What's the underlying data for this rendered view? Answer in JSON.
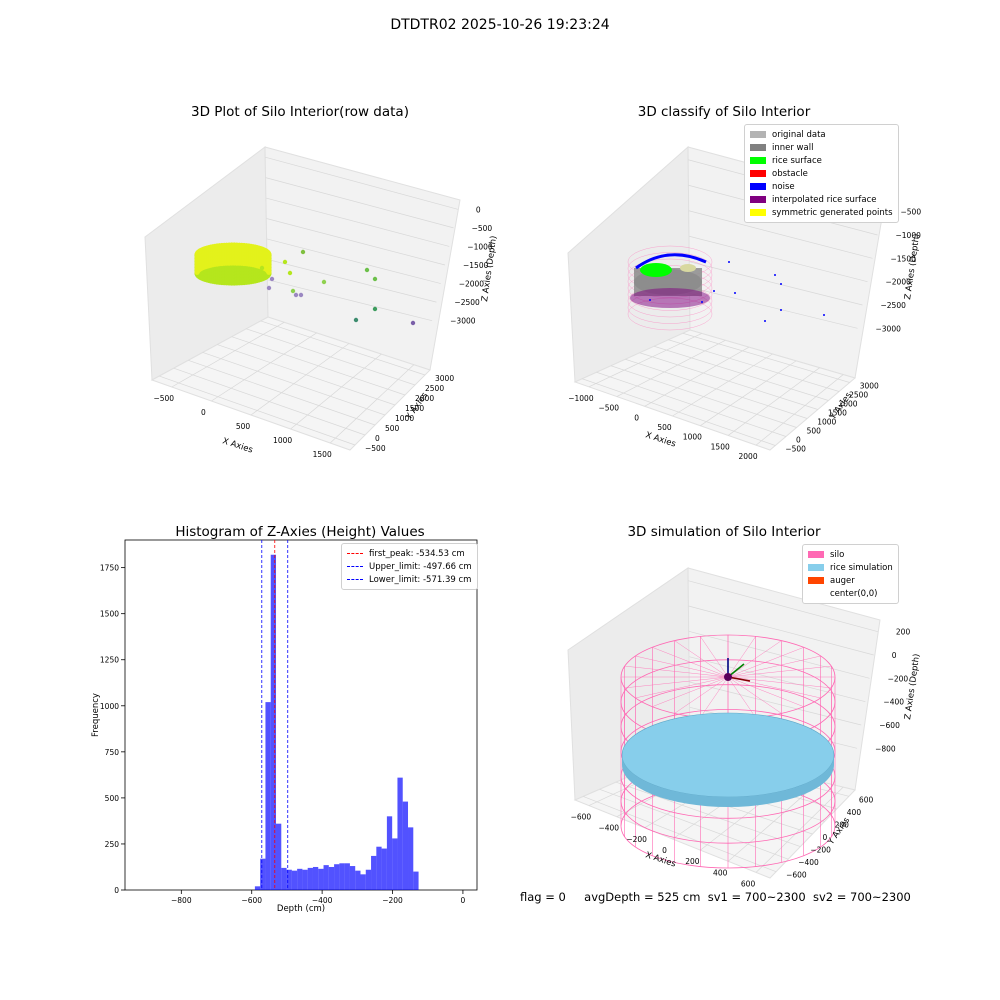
{
  "suptitle": "DTDTR02 2025-10-26 19:23:24",
  "status": {
    "flag": "flag = 0",
    "avg_depth": "avgDepth = 525 cm",
    "sv1": "sv1 = 700~2300",
    "sv2": "sv2 = 700~2300"
  },
  "chart_data": [
    {
      "type": "scatter",
      "title": "3D Plot of Silo Interior(row data)",
      "xlabel": "X Axies",
      "ylabel": "Y Axies",
      "zlabel": "Z Axies (Depth)",
      "x_ticks": [
        "−500",
        "0",
        "500",
        "1000",
        "1500"
      ],
      "y_ticks": [
        "−500",
        "0",
        "500",
        "1000",
        "1500",
        "2000",
        "2500",
        "3000"
      ],
      "z_ticks": [
        "0",
        "−500",
        "−1000",
        "−1500",
        "−2000",
        "−2500",
        "−3000"
      ],
      "grid": true
    },
    {
      "type": "scatter",
      "title": "3D classify of Silo Interior",
      "xlabel": "X Axies",
      "ylabel": "Y Axies",
      "zlabel": "Z Axies (Depth)",
      "x_ticks": [
        "−1000",
        "−500",
        "0",
        "500",
        "1000",
        "1500",
        "2000"
      ],
      "y_ticks": [
        "−500",
        "0",
        "500",
        "1000",
        "1500",
        "2000",
        "2500",
        "3000"
      ],
      "z_ticks": [
        "−500",
        "−1000",
        "−1500",
        "−2000",
        "−2500",
        "−3000"
      ],
      "legend": [
        {
          "label": "original data",
          "color": "#b3b3b3"
        },
        {
          "label": "inner wall",
          "color": "#808080"
        },
        {
          "label": "rice surface",
          "color": "#00ff00"
        },
        {
          "label": "obstacle",
          "color": "#ff0000"
        },
        {
          "label": "noise",
          "color": "#0000ff"
        },
        {
          "label": "interpolated rice surface",
          "color": "#800080"
        },
        {
          "label": "symmetric generated points",
          "color": "#ffff00"
        }
      ],
      "legend_position": "upper right",
      "grid": true
    },
    {
      "type": "bar",
      "title": "Histogram of Z-Axies (Height) Values",
      "xlabel": "Depth (cm)",
      "ylabel": "Frequency",
      "xlim": [
        -960,
        40
      ],
      "ylim": [
        0,
        1900
      ],
      "x_ticks": [
        -800,
        -600,
        -400,
        -200,
        0
      ],
      "y_ticks": [
        0,
        250,
        500,
        750,
        1000,
        1250,
        1500,
        1750
      ],
      "bar_color": "#0000ff",
      "bin_width": 15,
      "bin_edges_start": -591,
      "counts": [
        20,
        170,
        1020,
        1820,
        360,
        120,
        110,
        105,
        115,
        110,
        120,
        125,
        115,
        135,
        125,
        140,
        145,
        145,
        130,
        105,
        85,
        110,
        185,
        235,
        225,
        400,
        280,
        610,
        480,
        340,
        100
      ],
      "vlines": [
        {
          "label": "first_peak: -534.53 cm",
          "x": -534.53,
          "color": "#ff0000"
        },
        {
          "label": "Upper_limit: -497.66 cm",
          "x": -497.66,
          "color": "#0000ff"
        },
        {
          "label": "Lower_limit: -571.39 cm",
          "x": -571.39,
          "color": "#0000ff"
        }
      ],
      "legend_position": "upper right"
    },
    {
      "type": "scatter",
      "title": "3D simulation of Silo Interior",
      "xlabel": "X Axies",
      "ylabel": "Y Axies",
      "zlabel": "Z Axies (Depth)",
      "x_ticks": [
        "−600",
        "−400",
        "−200",
        "0",
        "200",
        "400",
        "600"
      ],
      "y_ticks": [
        "−600",
        "−400",
        "−200",
        "0",
        "200",
        "400",
        "600"
      ],
      "z_ticks": [
        "200",
        "0",
        "−200",
        "−400",
        "−600",
        "−800"
      ],
      "legend": [
        {
          "label": "silo",
          "color": "#ff69b4"
        },
        {
          "label": "rice simulation",
          "color": "#87ceeb"
        },
        {
          "label": "auger",
          "color": "#ff4500"
        },
        {
          "label": "center(0,0)",
          "color": "#ffffff"
        }
      ],
      "legend_position": "upper right",
      "grid": true
    }
  ]
}
